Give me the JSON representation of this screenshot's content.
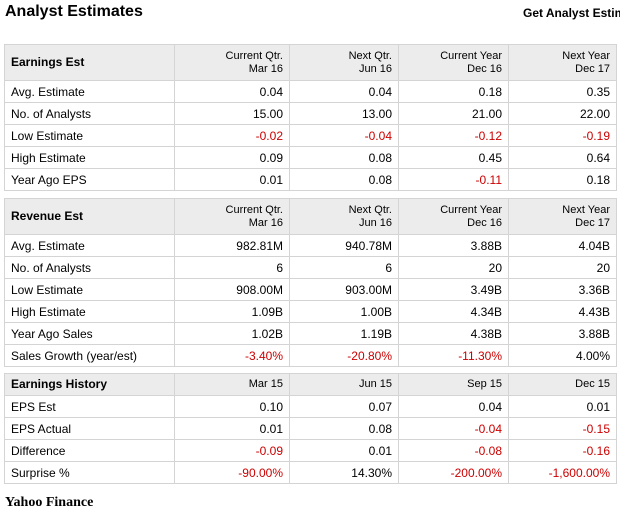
{
  "title": "Analyst Estimates",
  "link": "Get Analyst Estim",
  "footer": "Yahoo Finance",
  "tables": [
    {
      "heading": "Earnings Est",
      "columns": [
        [
          "Current Qtr.",
          "Mar 16"
        ],
        [
          "Next Qtr.",
          "Jun 16"
        ],
        [
          "Current Year",
          "Dec 16"
        ],
        [
          "Next Year",
          "Dec 17"
        ]
      ],
      "rows": [
        {
          "label": "Avg. Estimate",
          "values": [
            "0.04",
            "0.04",
            "0.18",
            "0.35"
          ]
        },
        {
          "label": "No. of Analysts",
          "values": [
            "15.00",
            "13.00",
            "21.00",
            "22.00"
          ]
        },
        {
          "label": "Low Estimate",
          "values": [
            "-0.02",
            "-0.04",
            "-0.12",
            "-0.19"
          ]
        },
        {
          "label": "High Estimate",
          "values": [
            "0.09",
            "0.08",
            "0.45",
            "0.64"
          ]
        },
        {
          "label": "Year Ago EPS",
          "values": [
            "0.01",
            "0.08",
            "-0.11",
            "0.18"
          ]
        }
      ]
    },
    {
      "heading": "Revenue Est",
      "columns": [
        [
          "Current Qtr.",
          "Mar 16"
        ],
        [
          "Next Qtr.",
          "Jun 16"
        ],
        [
          "Current Year",
          "Dec 16"
        ],
        [
          "Next Year",
          "Dec 17"
        ]
      ],
      "rows": [
        {
          "label": "Avg. Estimate",
          "values": [
            "982.81M",
            "940.78M",
            "3.88B",
            "4.04B"
          ]
        },
        {
          "label": "No. of Analysts",
          "values": [
            "6",
            "6",
            "20",
            "20"
          ]
        },
        {
          "label": "Low Estimate",
          "values": [
            "908.00M",
            "903.00M",
            "3.49B",
            "3.36B"
          ]
        },
        {
          "label": "High Estimate",
          "values": [
            "1.09B",
            "1.00B",
            "4.34B",
            "4.43B"
          ]
        },
        {
          "label": "Year Ago Sales",
          "values": [
            "1.02B",
            "1.19B",
            "4.38B",
            "3.88B"
          ]
        },
        {
          "label": "Sales Growth (year/est)",
          "values": [
            "-3.40%",
            "-20.80%",
            "-11.30%",
            "4.00%"
          ]
        }
      ]
    },
    {
      "heading": "Earnings History",
      "columns": [
        [
          "Mar 15"
        ],
        [
          "Jun 15"
        ],
        [
          "Sep 15"
        ],
        [
          "Dec 15"
        ]
      ],
      "rows": [
        {
          "label": "EPS Est",
          "values": [
            "0.10",
            "0.07",
            "0.04",
            "0.01"
          ]
        },
        {
          "label": "EPS Actual",
          "values": [
            "0.01",
            "0.08",
            "-0.04",
            "-0.15"
          ]
        },
        {
          "label": "Difference",
          "values": [
            "-0.09",
            "0.01",
            "-0.08",
            "-0.16"
          ]
        },
        {
          "label": "Surprise %",
          "values": [
            "-90.00%",
            "14.30%",
            "-200.00%",
            "-1,600.00%"
          ]
        }
      ]
    }
  ],
  "colors": {
    "negative": "#cc0000",
    "header_bg": "#ececec",
    "border": "#d4d4d4"
  }
}
